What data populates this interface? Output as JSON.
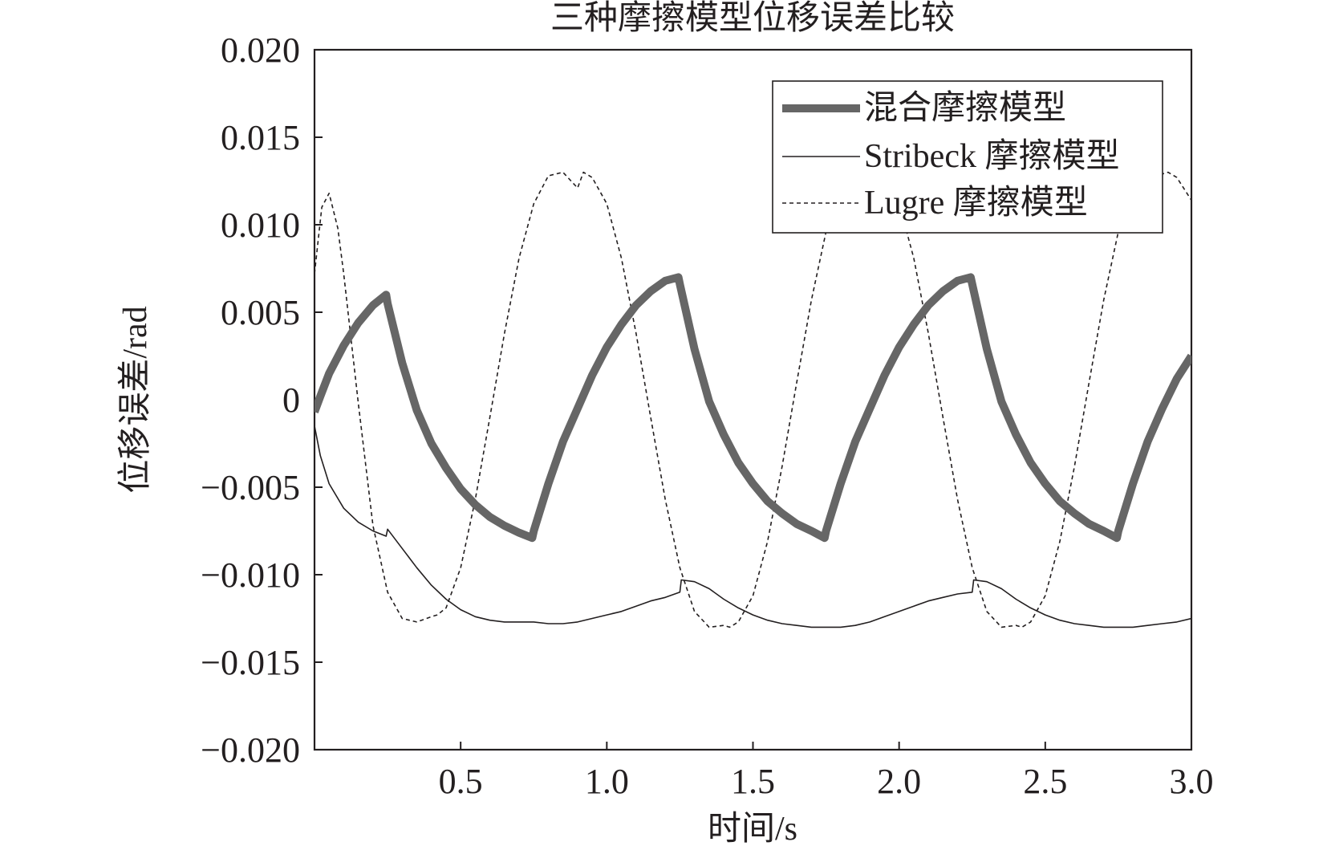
{
  "chart_data": {
    "type": "line",
    "title": "三种摩擦模型位移误差比较",
    "xlabel": "时间/s",
    "ylabel": "位移误差/rad",
    "xlim": [
      0,
      3.0
    ],
    "ylim": [
      -0.02,
      0.02
    ],
    "xticks": [
      0.5,
      1.0,
      1.5,
      2.0,
      2.5,
      3.0
    ],
    "xtick_labels": [
      "0.5",
      "1.0",
      "1.5",
      "2.0",
      "2.5",
      "3.0"
    ],
    "yticks": [
      0.02,
      0.015,
      0.01,
      0.005,
      0,
      -0.005,
      -0.01,
      -0.015,
      -0.02
    ],
    "ytick_labels": [
      "0.020",
      "0.015",
      "0.010",
      "0.005",
      "0",
      "−0.005",
      "−0.010",
      "−0.015",
      "−0.020"
    ],
    "grid": false,
    "legend_position": "top-right",
    "series": [
      {
        "name": "混合摩擦模型",
        "style": "thick-solid",
        "color": "#666666",
        "x": [
          0.0,
          0.02,
          0.05,
          0.1,
          0.15,
          0.2,
          0.245,
          0.25,
          0.3,
          0.35,
          0.4,
          0.45,
          0.5,
          0.55,
          0.6,
          0.65,
          0.7,
          0.745,
          0.75,
          0.8,
          0.85,
          0.9,
          0.95,
          1.0,
          1.05,
          1.1,
          1.15,
          1.2,
          1.245,
          1.25,
          1.3,
          1.35,
          1.4,
          1.45,
          1.5,
          1.55,
          1.6,
          1.65,
          1.7,
          1.745,
          1.75,
          1.8,
          1.85,
          1.9,
          1.95,
          2.0,
          2.05,
          2.1,
          2.15,
          2.2,
          2.245,
          2.25,
          2.3,
          2.35,
          2.4,
          2.45,
          2.5,
          2.55,
          2.6,
          2.65,
          2.7,
          2.745,
          2.75,
          2.8,
          2.85,
          2.9,
          2.95,
          3.0
        ],
        "values": [
          -0.0007,
          0.0002,
          0.0015,
          0.0031,
          0.0044,
          0.0054,
          0.006,
          0.0055,
          0.0021,
          -0.0006,
          -0.0025,
          -0.0039,
          -0.0051,
          -0.006,
          -0.0067,
          -0.0072,
          -0.0076,
          -0.0079,
          -0.0075,
          -0.0048,
          -0.0024,
          -0.0005,
          0.0014,
          0.003,
          0.0043,
          0.0054,
          0.0062,
          0.0068,
          0.007,
          0.0066,
          0.0029,
          -0.0001,
          -0.002,
          -0.0036,
          -0.0048,
          -0.0058,
          -0.0065,
          -0.0071,
          -0.0075,
          -0.0079,
          -0.0075,
          -0.0048,
          -0.0024,
          -0.0005,
          0.0014,
          0.003,
          0.0043,
          0.0054,
          0.0062,
          0.0068,
          0.007,
          0.0066,
          0.0029,
          -0.0001,
          -0.002,
          -0.0036,
          -0.0048,
          -0.0058,
          -0.0065,
          -0.0071,
          -0.0075,
          -0.0079,
          -0.0075,
          -0.0048,
          -0.0024,
          -0.0005,
          0.0012,
          0.0025
        ]
      },
      {
        "name": "Stribeck 摩擦模型",
        "style": "thin-solid",
        "color": "#231f20",
        "x": [
          0.0,
          0.02,
          0.05,
          0.1,
          0.15,
          0.2,
          0.245,
          0.25,
          0.3,
          0.35,
          0.4,
          0.45,
          0.5,
          0.55,
          0.6,
          0.65,
          0.7,
          0.75,
          0.8,
          0.85,
          0.9,
          0.95,
          1.0,
          1.05,
          1.1,
          1.15,
          1.2,
          1.25,
          1.255,
          1.3,
          1.35,
          1.4,
          1.45,
          1.5,
          1.55,
          1.6,
          1.65,
          1.7,
          1.75,
          1.8,
          1.85,
          1.9,
          1.95,
          2.0,
          2.05,
          2.1,
          2.15,
          2.2,
          2.25,
          2.255,
          2.3,
          2.35,
          2.4,
          2.45,
          2.5,
          2.55,
          2.6,
          2.65,
          2.7,
          2.75,
          2.8,
          2.85,
          2.9,
          2.95,
          3.0
        ],
        "values": [
          -0.0015,
          -0.0032,
          -0.0048,
          -0.0062,
          -0.007,
          -0.0075,
          -0.0078,
          -0.0074,
          -0.0085,
          -0.0096,
          -0.0106,
          -0.0114,
          -0.012,
          -0.0124,
          -0.0126,
          -0.0127,
          -0.0127,
          -0.0127,
          -0.0128,
          -0.0128,
          -0.0127,
          -0.0125,
          -0.0123,
          -0.0121,
          -0.0118,
          -0.0115,
          -0.0113,
          -0.011,
          -0.0103,
          -0.0104,
          -0.0108,
          -0.0114,
          -0.0119,
          -0.0123,
          -0.0126,
          -0.0128,
          -0.0129,
          -0.013,
          -0.013,
          -0.013,
          -0.0129,
          -0.0127,
          -0.0124,
          -0.0121,
          -0.0118,
          -0.0115,
          -0.0113,
          -0.0111,
          -0.011,
          -0.0103,
          -0.0104,
          -0.0108,
          -0.0114,
          -0.0119,
          -0.0123,
          -0.0126,
          -0.0128,
          -0.0129,
          -0.013,
          -0.013,
          -0.013,
          -0.0129,
          -0.0128,
          -0.0127,
          -0.0125
        ]
      },
      {
        "name": "Lugre 摩擦模型",
        "style": "dashed",
        "color": "#231f20",
        "x": [
          0.0,
          0.025,
          0.05,
          0.08,
          0.1,
          0.15,
          0.2,
          0.25,
          0.3,
          0.35,
          0.4,
          0.42,
          0.45,
          0.5,
          0.55,
          0.6,
          0.65,
          0.7,
          0.75,
          0.8,
          0.85,
          0.9,
          0.92,
          0.95,
          1.0,
          1.05,
          1.1,
          1.15,
          1.2,
          1.25,
          1.3,
          1.35,
          1.4,
          1.42,
          1.45,
          1.5,
          1.55,
          1.6,
          1.65,
          1.7,
          1.75,
          1.8,
          1.85,
          1.9,
          1.92,
          1.95,
          2.0,
          2.05,
          2.1,
          2.15,
          2.2,
          2.25,
          2.3,
          2.35,
          2.4,
          2.42,
          2.45,
          2.5,
          2.55,
          2.6,
          2.65,
          2.7,
          2.75,
          2.8,
          2.85,
          2.9,
          2.92,
          2.95,
          3.0
        ],
        "values": [
          0.0072,
          0.011,
          0.0118,
          0.0098,
          0.0072,
          -0.0002,
          -0.0072,
          -0.011,
          -0.0125,
          -0.0127,
          -0.0124,
          -0.0123,
          -0.0119,
          -0.0096,
          -0.0057,
          -0.001,
          0.0038,
          0.0081,
          0.0112,
          0.0128,
          0.013,
          0.0121,
          0.013,
          0.0127,
          0.0112,
          0.0081,
          0.0038,
          -0.001,
          -0.0057,
          -0.0096,
          -0.0121,
          -0.013,
          -0.0129,
          -0.013,
          -0.0127,
          -0.0112,
          -0.0081,
          -0.0038,
          0.001,
          0.0057,
          0.0096,
          0.0121,
          0.013,
          0.0129,
          0.013,
          0.0127,
          0.0112,
          0.0081,
          0.0038,
          -0.001,
          -0.0057,
          -0.0096,
          -0.0121,
          -0.013,
          -0.0129,
          -0.013,
          -0.0127,
          -0.0112,
          -0.0081,
          -0.0038,
          0.001,
          0.0057,
          0.0096,
          0.0121,
          0.013,
          0.0129,
          0.013,
          0.0127,
          0.0114
        ]
      }
    ]
  }
}
